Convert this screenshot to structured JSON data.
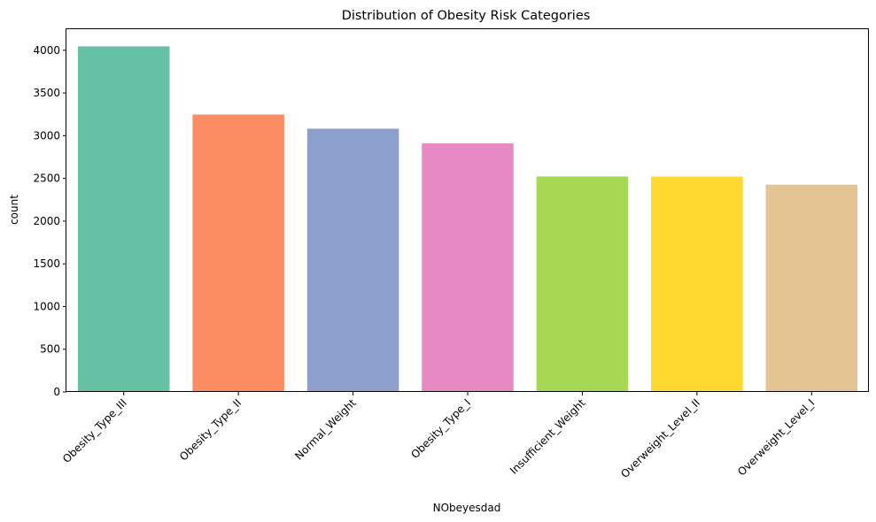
{
  "chart_data": {
    "type": "bar",
    "title": "Distribution of Obesity Risk Categories",
    "xlabel": "NObeyesdad",
    "ylabel": "count",
    "categories": [
      "Obesity_Type_III",
      "Obesity_Type_II",
      "Normal_Weight",
      "Obesity_Type_I",
      "Insufficient_Weight",
      "Overweight_Level_II",
      "Overweight_Level_I"
    ],
    "values": [
      4046,
      3248,
      3082,
      2910,
      2523,
      2522,
      2427
    ],
    "colors": [
      "#66c2a5",
      "#fc8d62",
      "#8da0cb",
      "#e78ac3",
      "#a6d854",
      "#ffd92f",
      "#e5c494"
    ],
    "ylim": [
      0,
      4247
    ],
    "yticks": [
      0,
      500,
      1000,
      1500,
      2000,
      2500,
      3000,
      3500,
      4000
    ],
    "grid": false,
    "legend": false
  }
}
